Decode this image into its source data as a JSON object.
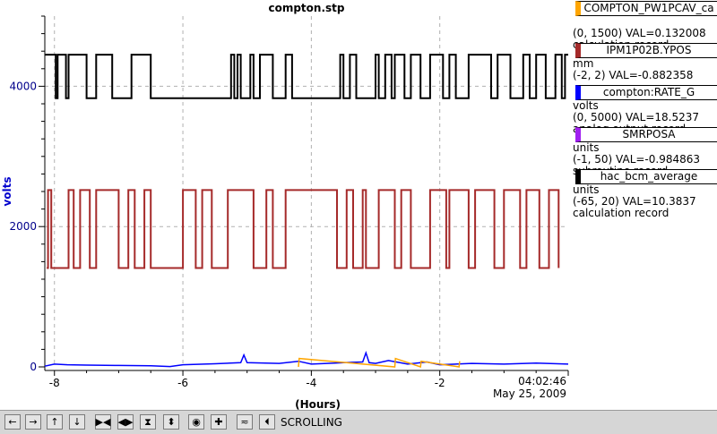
{
  "chart_data": {
    "type": "line",
    "title": "compton.stp",
    "xlabel": "(Hours)",
    "ylabel": "volts",
    "xlim": [
      -8.15,
      0
    ],
    "ylim": [
      0,
      5000
    ],
    "x_ticks": [
      -8,
      -6,
      -4,
      -2
    ],
    "x_tick_labels": [
      "-8",
      "-6",
      "-4",
      "-2"
    ],
    "y_ticks": [
      0,
      2000,
      4000
    ],
    "y_tick_labels": [
      "0",
      "2000",
      "4000"
    ],
    "end_time": "04:02:46",
    "end_date": "May 25, 2009",
    "grid": true,
    "series": [
      {
        "name": "compton:RATE_G",
        "color": "#000000",
        "baseline": 4450,
        "spike_to": 3830,
        "x": [
          -8.15,
          -7.98,
          -7.95,
          -7.82,
          -7.78,
          -7.5,
          -7.35,
          -7.1,
          -6.8,
          -6.5,
          -5.25,
          -5.2,
          -5.15,
          -5.1,
          -4.95,
          -4.9,
          -4.8,
          -4.6,
          -4.4,
          -4.3,
          -3.55,
          -3.5,
          -3.4,
          -3.3,
          -3.0,
          -2.95,
          -2.85,
          -2.75,
          -2.7,
          -2.55,
          -2.45,
          -2.3,
          -2.15,
          -1.95,
          -1.85,
          -1.75,
          -1.55,
          -1.2,
          -1.1,
          -0.9,
          -0.7,
          -0.6,
          -0.5,
          -0.35,
          -0.2,
          -0.1,
          -0.05,
          0
        ],
        "y": [
          4450,
          3830,
          4450,
          3830,
          4450,
          3830,
          4450,
          3830,
          4450,
          3830,
          4450,
          3830,
          4450,
          3830,
          4450,
          3830,
          4450,
          3830,
          4450,
          3830,
          4450,
          3830,
          4450,
          3830,
          4450,
          3830,
          4450,
          3830,
          4450,
          3830,
          4450,
          3830,
          4450,
          3830,
          4450,
          3830,
          4450,
          3830,
          4450,
          3830,
          4450,
          3830,
          4450,
          3830,
          4450,
          3830,
          4450,
          4450
        ]
      },
      {
        "name": "IPM1P02B.YPOS",
        "color": "#a52a2a",
        "baseline": 1410,
        "spike_to": 2520,
        "x": [
          -8.12,
          -8.1,
          -8.05,
          -7.78,
          -7.7,
          -7.6,
          -7.45,
          -7.35,
          -7.0,
          -6.85,
          -6.75,
          -6.6,
          -6.5,
          -6.0,
          -5.8,
          -5.7,
          -5.55,
          -5.3,
          -4.9,
          -4.7,
          -4.6,
          -4.4,
          -3.6,
          -3.45,
          -3.35,
          -3.2,
          -3.15,
          -2.95,
          -2.7,
          -2.6,
          -2.45,
          -2.15,
          -1.9,
          -1.85,
          -1.55,
          -1.45,
          -1.15,
          -1.0,
          -0.75,
          -0.65,
          -0.45,
          -0.3,
          -0.15
        ],
        "y": [
          1410,
          2520,
          1410,
          2520,
          1410,
          2520,
          1410,
          2520,
          1410,
          2520,
          1410,
          2520,
          1410,
          2520,
          1410,
          2520,
          1410,
          2520,
          1410,
          2520,
          1410,
          2520,
          1410,
          2520,
          1410,
          2520,
          1410,
          2520,
          1410,
          2520,
          1410,
          2520,
          1410,
          2520,
          1410,
          2520,
          1410,
          2520,
          1410,
          2520,
          1410,
          2520,
          1410
        ]
      },
      {
        "name": "compton:RATE_G",
        "color": "#0000ff",
        "x": [
          -8.15,
          -8.0,
          -7.8,
          -7.5,
          -7.0,
          -6.5,
          -6.2,
          -6.0,
          -5.5,
          -5.1,
          -5.05,
          -5.0,
          -4.5,
          -4.2,
          -4.0,
          -3.5,
          -3.2,
          -3.15,
          -3.1,
          -3.0,
          -2.8,
          -2.5,
          -2.2,
          -2.0,
          -1.5,
          -1.0,
          -0.5,
          0
        ],
        "y": [
          10,
          40,
          30,
          25,
          20,
          15,
          5,
          30,
          45,
          60,
          170,
          60,
          50,
          80,
          40,
          60,
          70,
          200,
          60,
          50,
          90,
          40,
          70,
          30,
          50,
          40,
          55,
          40
        ]
      },
      {
        "name": "COMPTON_PW1PCAV_ca",
        "color": "#ffa500",
        "x": [
          -4.2,
          -4.19,
          -2.7,
          -2.69,
          -2.3,
          -2.29,
          -1.7,
          -1.69
        ],
        "y": [
          0,
          120,
          0,
          120,
          0,
          80,
          0,
          80
        ]
      }
    ]
  },
  "legend": [
    {
      "name": "COMPTON_PW1PCAV_ca",
      "color": "#ffa500",
      "units": "",
      "range": "(0, 1500) VAL=0.132008",
      "rtype": "calculation record"
    },
    {
      "name": "IPM1P02B.YPOS",
      "color": "#a52a2a",
      "units": "mm",
      "range": "(-2, 2) VAL=-0.882358",
      "rtype": ""
    },
    {
      "name": "compton:RATE_G",
      "color": "#0000ff",
      "units": "volts",
      "range": "(0, 5000) VAL=18.5237",
      "rtype": "analog output record"
    },
    {
      "name": "SMRPOSA",
      "color": "#a020f0",
      "units": "units",
      "range": "(-1, 50) VAL=-0.984863",
      "rtype": "subroutine record"
    },
    {
      "name": "hac_bcm_average",
      "color": "#000000",
      "units": "units",
      "range": "(-65, 20) VAL=10.3837",
      "rtype": "calculation record"
    }
  ],
  "toolbar": {
    "mode_label": "SCROLLING",
    "buttons": [
      {
        "icon": "arrow-left-icon",
        "glyph": "←"
      },
      {
        "icon": "arrow-right-icon",
        "glyph": "→"
      },
      {
        "icon": "arrow-up-icon",
        "glyph": "↑"
      },
      {
        "icon": "arrow-down-icon",
        "glyph": "↓"
      },
      {
        "icon": "zoom-in-x-icon",
        "glyph": "▶◀"
      },
      {
        "icon": "zoom-out-x-icon",
        "glyph": "◀▶"
      },
      {
        "icon": "zoom-in-y-icon",
        "glyph": "⧗"
      },
      {
        "icon": "zoom-out-y-icon",
        "glyph": "⬍"
      },
      {
        "icon": "record-icon",
        "glyph": "◉"
      },
      {
        "icon": "plus-icon",
        "glyph": "✚"
      },
      {
        "icon": "scale-icon",
        "glyph": "≂"
      },
      {
        "icon": "scroll-left-icon",
        "glyph": "⏴"
      }
    ]
  }
}
